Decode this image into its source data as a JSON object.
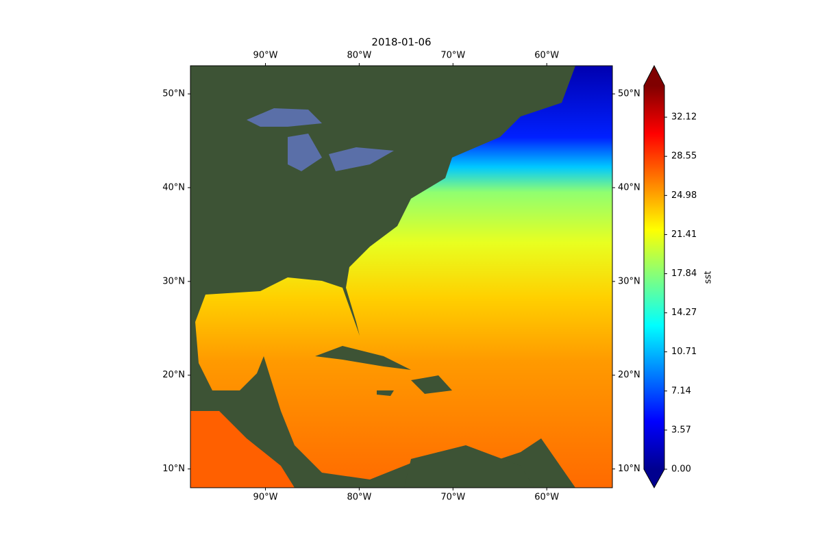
{
  "chart_data": {
    "type": "map",
    "title": "2018-01-06",
    "xlim": [
      -98,
      -53
    ],
    "ylim": [
      8,
      53
    ],
    "xticks": [
      {
        "value": -90,
        "label": "90°W"
      },
      {
        "value": -80,
        "label": "80°W"
      },
      {
        "value": -70,
        "label": "70°W"
      },
      {
        "value": -60,
        "label": "60°W"
      }
    ],
    "yticks": [
      {
        "value": 10,
        "label": "10°N"
      },
      {
        "value": 20,
        "label": "20°N"
      },
      {
        "value": 30,
        "label": "30°N"
      },
      {
        "value": 40,
        "label": "40°N"
      },
      {
        "value": 50,
        "label": "50°N"
      }
    ],
    "colorbar": {
      "label": "sst",
      "lim": [
        0,
        35
      ],
      "ticks": [
        {
          "value": 0,
          "label": "0.00"
        },
        3.57,
        7.14,
        10.71,
        14.27,
        17.84,
        21.41,
        24.98,
        28.55,
        32.12
      ]
    }
  }
}
